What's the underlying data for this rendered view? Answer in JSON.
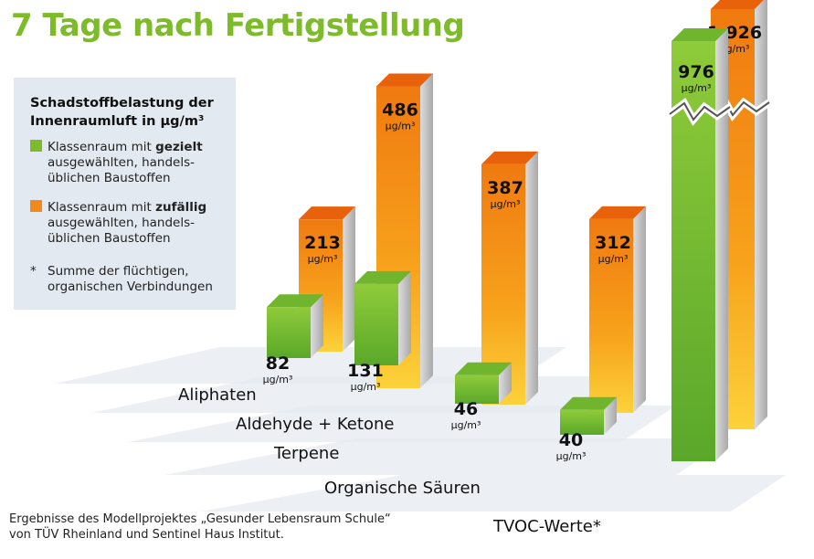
{
  "title": "7 Tage nach Fertigstellung",
  "legend": {
    "title_line1": "Schadstoffbelastung der",
    "title_line2": "Innenraumluft in µg/m³",
    "items": [
      {
        "prefix": "Klassenraum mit ",
        "bold": "gezielt",
        "rest": " ausgewählten, handels-üblichen Baustoffen",
        "color": "#7dbb2a"
      },
      {
        "prefix": "Klassenraum mit ",
        "bold": "zufällig",
        "rest": " ausgewählten, handels-üblichen Baustoffen",
        "color": "#f08a1c"
      }
    ],
    "footnote_mark": "*",
    "footnote": "Summe der flüchtigen, organischen Verbindungen"
  },
  "footer": {
    "line1": "Ergebnisse des Modellprojektes „Gesunder Lebensraum Schule“",
    "line2": "von TÜV Rheinland und Sentinel Haus Institut."
  },
  "chart_data": {
    "type": "bar",
    "style": "3d-grouped",
    "unit": "µg/m³",
    "categories": [
      "Aliphaten",
      "Aldehyde + Ketone",
      "Terpene",
      "Organische Säuren",
      "TVOC-Werte*"
    ],
    "series": [
      {
        "name": "Klassenraum mit gezielt ausgewählten, handelsüblichen Baustoffen",
        "color": "#7dbb2a",
        "values": [
          82,
          131,
          46,
          40,
          976
        ],
        "labels": [
          "82",
          "131",
          "46",
          "40",
          "976"
        ]
      },
      {
        "name": "Klassenraum mit zufällig ausgewählten, handelsüblichen Baustoffen",
        "color": "#f08a1c",
        "values": [
          213,
          486,
          387,
          312,
          1926
        ],
        "labels": [
          "213",
          "486",
          "387",
          "312",
          "1.926"
        ]
      }
    ],
    "broken_axis_category": "TVOC-Werte*"
  }
}
